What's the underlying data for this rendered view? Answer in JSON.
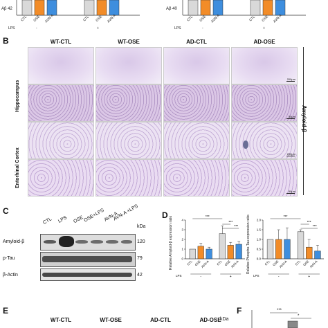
{
  "panelA": {
    "ylabel_left": "Aβ 42",
    "ylabel_right": "Aβ 40",
    "groups": [
      "CTL",
      "OSE",
      "AVN-A"
    ],
    "lps_label": "LPS",
    "lps_minus": "-",
    "lps_plus": "+",
    "colors": [
      "#d9d9d9",
      "#f28c28",
      "#3e8ede"
    ]
  },
  "panelB": {
    "label": "B",
    "columns": [
      "WT-CTL",
      "WT-OSE",
      "AD-CTL",
      "AD-OSE"
    ],
    "row_group1": "Hippocampus",
    "row_group2": "Entorhinal Cortex",
    "side_label": "Amyloid-β",
    "scale_200": "200μm",
    "scale_50": "50μm"
  },
  "panelC": {
    "label": "C",
    "lanes": [
      "CTL",
      "LPS",
      "OSE",
      "OSE+LPS",
      "AVN-A",
      "AVN-A +LPS"
    ],
    "kda": "kDa",
    "rows": [
      {
        "name": "Amyloid-β",
        "mw": "120"
      },
      {
        "name": "p-Tau",
        "mw": "79"
      },
      {
        "name": "β-Actin",
        "mw": "42"
      }
    ]
  },
  "panelD": {
    "label": "D",
    "ylabel_left": "Relative Amyloid-β expression ratio",
    "ylabel_right": "Relative Phospho-Tau expression ratio",
    "sig": "***",
    "lps_label": "LPS",
    "lps_minus": "-",
    "lps_plus": "+",
    "chart_data": [
      {
        "type": "bar",
        "categories": [
          "CTL",
          "OSE",
          "AVN-A",
          "CTL",
          "OSE",
          "AVN-A"
        ],
        "values": [
          1.0,
          1.3,
          1.0,
          2.6,
          1.4,
          1.5
        ],
        "errors": [
          0.0,
          0.3,
          0.2,
          0.8,
          0.3,
          0.3
        ],
        "ylim": [
          0,
          4
        ],
        "yticks": [
          "0",
          "1",
          "2",
          "3",
          "4"
        ]
      },
      {
        "type": "bar",
        "categories": [
          "CTL",
          "OSE",
          "AVN-A",
          "CTL",
          "OSE",
          "AVN-A"
        ],
        "values": [
          1.0,
          1.0,
          1.0,
          1.4,
          0.6,
          0.4
        ],
        "errors": [
          0.0,
          0.5,
          0.6,
          0.1,
          0.4,
          0.3
        ],
        "ylim": [
          0,
          2.0
        ],
        "yticks": [
          "0.0",
          "0.5",
          "1.0",
          "1.5",
          "2.0"
        ]
      }
    ]
  },
  "panelE": {
    "label": "E",
    "columns": [
      "WT-CTL",
      "WT-OSE",
      "AD-CTL",
      "AD-OSE"
    ]
  },
  "panelF": {
    "label": "F",
    "kda": "kDa",
    "sig1": "***",
    "sig2": "*"
  }
}
